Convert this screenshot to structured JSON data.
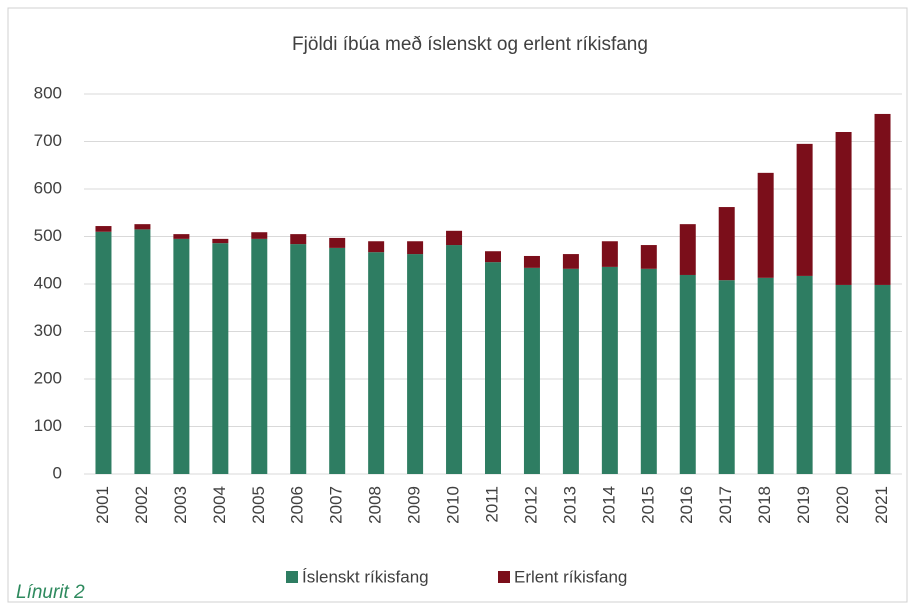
{
  "chart_data": {
    "type": "stacked_bar",
    "title": "Fjöldi íbúa með íslenskt og erlent ríkisfang",
    "categories": [
      "2001",
      "2002",
      "2003",
      "2004",
      "2005",
      "2006",
      "2007",
      "2008",
      "2009",
      "2010",
      "2011",
      "2012",
      "2013",
      "2014",
      "2015",
      "2016",
      "2017",
      "2018",
      "2019",
      "2020",
      "2021"
    ],
    "series": [
      {
        "name": "Íslenskt ríkisfang",
        "color": "#2e7d62",
        "values": [
          510,
          515,
          495,
          486,
          495,
          484,
          476,
          467,
          463,
          482,
          446,
          434,
          432,
          436,
          432,
          419,
          408,
          413,
          417,
          398,
          398
        ]
      },
      {
        "name": "Erlent ríkisfang",
        "color": "#7b0e1a",
        "values": [
          12,
          11,
          10,
          9,
          14,
          21,
          21,
          23,
          27,
          30,
          23,
          25,
          31,
          54,
          50,
          107,
          154,
          221,
          278,
          322,
          360
        ]
      }
    ],
    "ylim": [
      0,
      800
    ],
    "yticks": [
      0,
      100,
      200,
      300,
      400,
      500,
      600,
      700,
      800
    ],
    "grid": true,
    "legend": "bottom",
    "caption": "Línurit 2"
  }
}
